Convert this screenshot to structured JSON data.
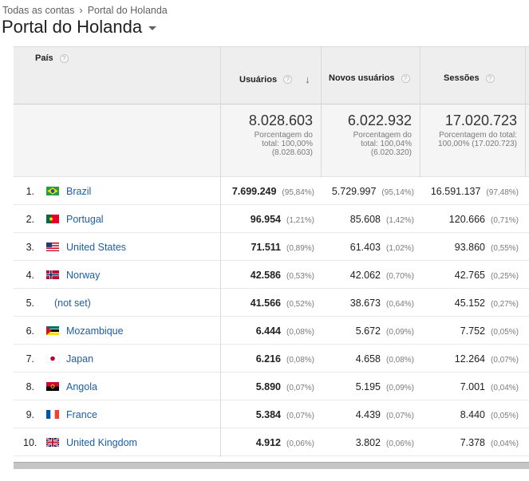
{
  "breadcrumb": {
    "root": "Todas as contas",
    "current": "Portal do Holanda"
  },
  "account_title": "Portal do Holanda",
  "columns": {
    "country": "País",
    "users": "Usuários",
    "new_users": "Novos usuários",
    "sessions": "Sessões"
  },
  "totals": {
    "users": {
      "value": "8.028.603",
      "l1": "Porcentagem do",
      "l2": "total: 100,00%",
      "l3": "(8.028.603)"
    },
    "new_users": {
      "value": "6.022.932",
      "l1": "Porcentagem do",
      "l2": "total: 100,04%",
      "l3": "(6.020.320)"
    },
    "sessions": {
      "value": "17.020.723",
      "l1": "Porcentagem do total:",
      "l2": "100,00% (17.020.723)",
      "l3": ""
    }
  },
  "rows": [
    {
      "idx": "1.",
      "country": "Brazil",
      "flag": "br",
      "users": "7.699.249",
      "users_pct": "(95,84%)",
      "new": "5.729.997",
      "new_pct": "(95,14%)",
      "sess": "16.591.137",
      "sess_pct": "(97,48%)"
    },
    {
      "idx": "2.",
      "country": "Portugal",
      "flag": "pt",
      "users": "96.954",
      "users_pct": "(1,21%)",
      "new": "85.608",
      "new_pct": "(1,42%)",
      "sess": "120.666",
      "sess_pct": "(0,71%)"
    },
    {
      "idx": "3.",
      "country": "United States",
      "flag": "us",
      "users": "71.511",
      "users_pct": "(0,89%)",
      "new": "61.403",
      "new_pct": "(1,02%)",
      "sess": "93.860",
      "sess_pct": "(0,55%)"
    },
    {
      "idx": "4.",
      "country": "Norway",
      "flag": "no",
      "users": "42.586",
      "users_pct": "(0,53%)",
      "new": "42.062",
      "new_pct": "(0,70%)",
      "sess": "42.765",
      "sess_pct": "(0,25%)"
    },
    {
      "idx": "5.",
      "country": "(not set)",
      "flag": "",
      "users": "41.566",
      "users_pct": "(0,52%)",
      "new": "38.673",
      "new_pct": "(0,64%)",
      "sess": "45.152",
      "sess_pct": "(0,27%)"
    },
    {
      "idx": "6.",
      "country": "Mozambique",
      "flag": "mz",
      "users": "6.444",
      "users_pct": "(0,08%)",
      "new": "5.672",
      "new_pct": "(0,09%)",
      "sess": "7.752",
      "sess_pct": "(0,05%)"
    },
    {
      "idx": "7.",
      "country": "Japan",
      "flag": "jp",
      "users": "6.216",
      "users_pct": "(0,08%)",
      "new": "4.658",
      "new_pct": "(0,08%)",
      "sess": "12.264",
      "sess_pct": "(0,07%)"
    },
    {
      "idx": "8.",
      "country": "Angola",
      "flag": "ao",
      "users": "5.890",
      "users_pct": "(0,07%)",
      "new": "5.195",
      "new_pct": "(0,09%)",
      "sess": "7.001",
      "sess_pct": "(0,04%)"
    },
    {
      "idx": "9.",
      "country": "France",
      "flag": "fr",
      "users": "5.384",
      "users_pct": "(0,07%)",
      "new": "4.439",
      "new_pct": "(0,07%)",
      "sess": "8.440",
      "sess_pct": "(0,05%)"
    },
    {
      "idx": "10.",
      "country": "United Kingdom",
      "flag": "gb",
      "users": "4.912",
      "users_pct": "(0,06%)",
      "new": "3.802",
      "new_pct": "(0,06%)",
      "sess": "7.378",
      "sess_pct": "(0,04%)"
    }
  ],
  "colors": {
    "link": "#1a5ea8",
    "header_bg": "#eeeeee",
    "totals_bg": "#f5f5f5"
  },
  "icons": {
    "help": "help-circle-icon",
    "sort": "arrow-down-icon",
    "breadcrumb_sep": "chevron-right-icon",
    "account_dropdown": "caret-down-icon"
  }
}
